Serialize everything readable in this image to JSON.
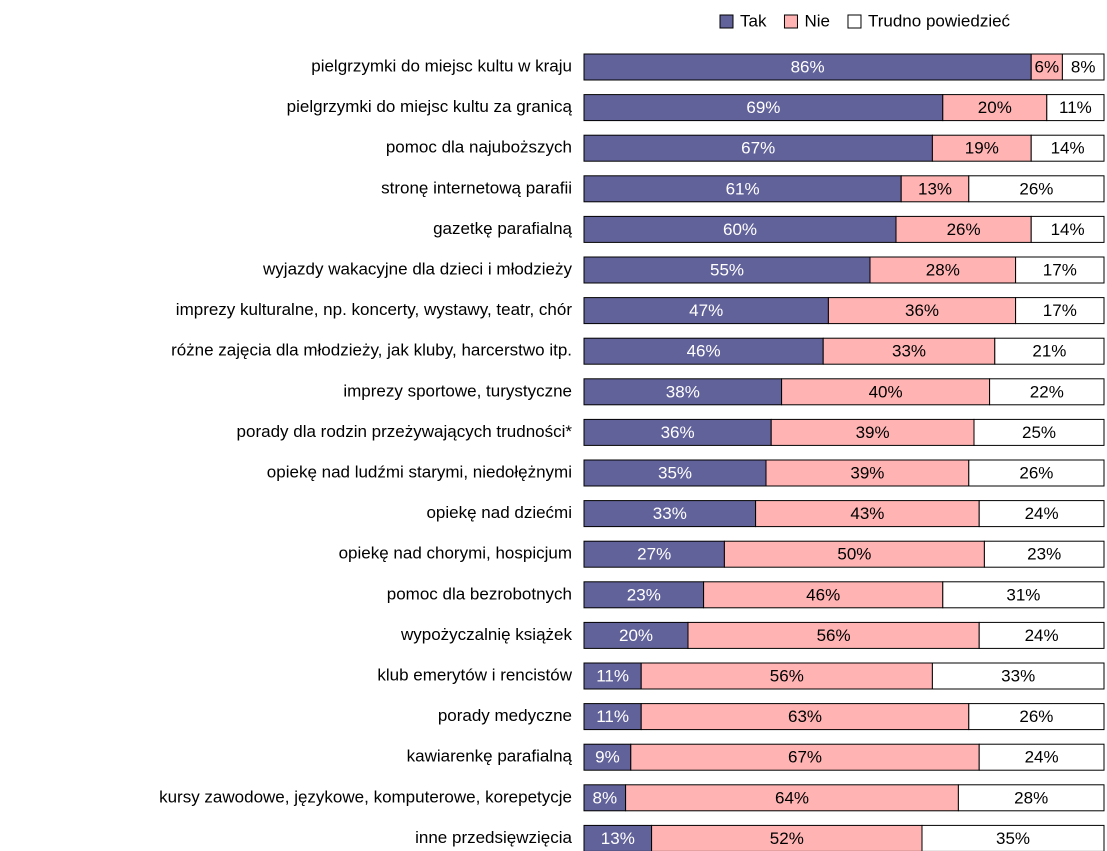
{
  "chart_data": {
    "type": "stacked-bar-horizontal",
    "categories": [
      "pielgrzymki do miejsc kultu w kraju",
      "pielgrzymki do miejsc kultu za granicą",
      "pomoc dla najuboższych",
      "stronę internetową parafii",
      "gazetkę parafialną",
      "wyjazdy wakacyjne dla dzieci i młodzieży",
      "imprezy kulturalne, np. koncerty, wystawy, teatr, chór",
      "różne zajęcia dla młodzieży, jak kluby, harcerstwo itp.",
      "imprezy sportowe, turystyczne",
      "porady dla rodzin przeżywających trudności*",
      "opiekę nad ludźmi starymi, niedołężnymi",
      "opiekę nad dziećmi",
      "opiekę nad chorymi, hospicjum",
      "pomoc dla bezrobotnych",
      "wypożyczalnię książek",
      "klub emerytów i rencistów",
      "porady medyczne",
      "kawiarenkę parafialną",
      "kursy zawodowe, językowe, komputerowe, korepetycje",
      "inne przedsięwzięcia"
    ],
    "xlim": [
      0,
      100
    ],
    "series": [
      {
        "name": "Tak",
        "color": "#62629a",
        "label_color": "#ffffff",
        "values": [
          86,
          69,
          67,
          61,
          60,
          55,
          47,
          46,
          38,
          36,
          35,
          33,
          27,
          23,
          20,
          11,
          11,
          9,
          8,
          13
        ],
        "value_labels": [
          "86%",
          "69%",
          "67%",
          "61%",
          "60%",
          "55%",
          "47%",
          "46%",
          "38%",
          "36%",
          "35%",
          "33%",
          "27%",
          "23%",
          "20%",
          "11%",
          "11%",
          "9%",
          "8%",
          "13%"
        ]
      },
      {
        "name": "Nie",
        "color": "#ffb3b3",
        "label_color": "#000000",
        "values": [
          6,
          20,
          19,
          13,
          26,
          28,
          36,
          33,
          40,
          39,
          39,
          43,
          50,
          46,
          56,
          56,
          63,
          67,
          64,
          52
        ],
        "value_labels": [
          "6%",
          "20%",
          "19%",
          "13%",
          "26%",
          "28%",
          "36%",
          "33%",
          "40%",
          "39%",
          "39%",
          "43%",
          "50%",
          "46%",
          "56%",
          "56%",
          "63%",
          "67%",
          "64%",
          "52%"
        ]
      },
      {
        "name": "Trudno powiedzieć",
        "color": "#ffffff",
        "label_color": "#000000",
        "values": [
          8,
          11,
          14,
          26,
          14,
          17,
          17,
          21,
          22,
          25,
          26,
          24,
          23,
          31,
          24,
          33,
          26,
          24,
          28,
          35
        ],
        "value_labels": [
          "8%",
          "11%",
          "14%",
          "26%",
          "14%",
          "17%",
          "17%",
          "21%",
          "22%",
          "25%",
          "26%",
          "24%",
          "23%",
          "31%",
          "24%",
          "33%",
          "26%",
          "24%",
          "28%",
          "35%"
        ]
      }
    ]
  }
}
